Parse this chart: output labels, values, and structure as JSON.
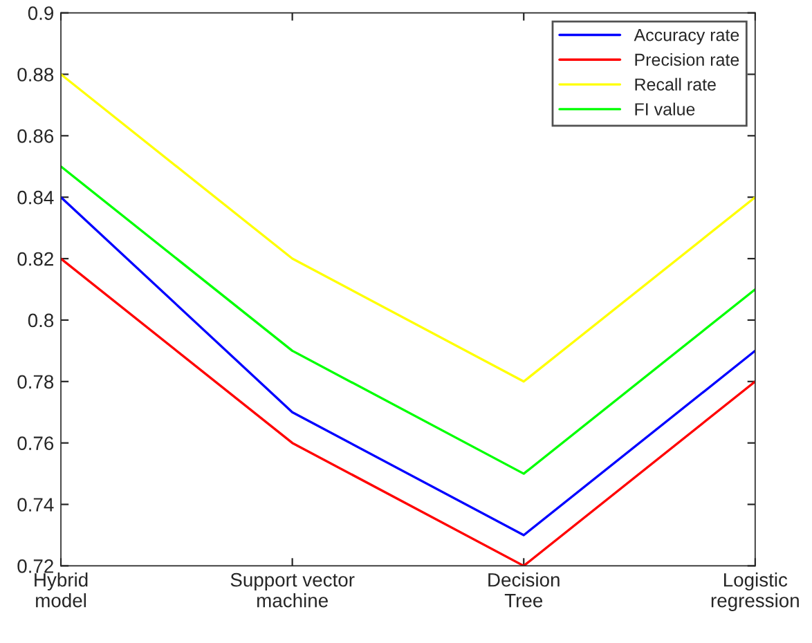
{
  "chart_data": {
    "type": "line",
    "categories": [
      "Hybrid\nmodel",
      "Support vector\nmachine",
      "Decision\nTree",
      "Logistic\nregression"
    ],
    "series": [
      {
        "name": "Accuracy rate",
        "color": "#0000ff",
        "values": [
          0.84,
          0.77,
          0.73,
          0.79
        ]
      },
      {
        "name": "Precision rate",
        "color": "#ff0000",
        "values": [
          0.82,
          0.76,
          0.72,
          0.78
        ]
      },
      {
        "name": "Recall rate",
        "color": "#ffff00",
        "values": [
          0.88,
          0.82,
          0.78,
          0.84
        ]
      },
      {
        "name": "FI value",
        "color": "#00ff00",
        "values": [
          0.85,
          0.79,
          0.75,
          0.81
        ]
      }
    ],
    "ylim": [
      0.72,
      0.9
    ],
    "yticks": [
      0.72,
      0.74,
      0.76,
      0.78,
      0.8,
      0.82,
      0.84,
      0.86,
      0.88,
      0.9
    ],
    "grid": false,
    "legend": "top right",
    "marker": "none",
    "line_style": "solid"
  }
}
